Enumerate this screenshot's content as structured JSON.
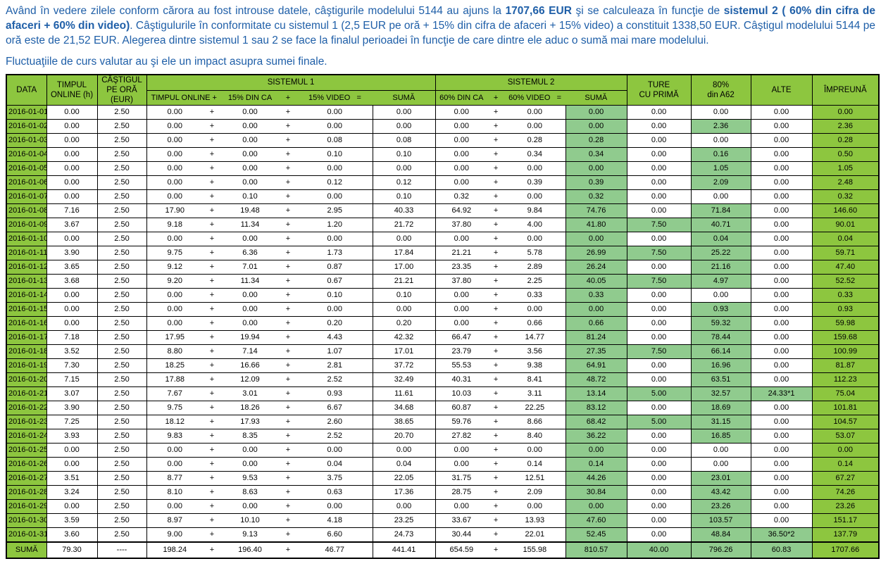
{
  "intro": {
    "paragraph_parts": [
      {
        "text": "Având în vedere zilele conform cărora au fost introuse datele, câştigurile modelului 5144 au ajuns la ",
        "bold": false
      },
      {
        "text": "1707,66 EUR",
        "bold": true
      },
      {
        "text": " şi se calculeaza în funcţie de ",
        "bold": false
      },
      {
        "text": "sistemul 2 ( 60% din cifra de afaceri + 60% din video)",
        "bold": true
      },
      {
        "text": ". Câştigulurile în conformitate cu sistemul 1 (2,5 EUR pe oră + 15% din cifra de afaceri + 15% video) a constituit 1338,50 EUR. Câştigul modelului 5144 pe oră este de 21,52 EUR. Alegerea dintre sistemul 1 sau 2 se face la finalul perioadei în funcţie de care dintre ele aduc o sumă mai mare modelului.",
        "bold": false
      }
    ],
    "paragraph2": "Fluctuaţiile de curs valutar au şi ele un impact asupra sumei finale."
  },
  "colors": {
    "text_blue": "#1f5fa8",
    "green_bright": "#8dc63f",
    "green_mid": "#90cb8e"
  },
  "table": {
    "plus_sign": "+",
    "headers": {
      "data": "DATA",
      "timpul_online": "TIMPUL\nONLINE (h)",
      "castigul": "CÂŞTIGUL\nPE ORĂ (EUR)",
      "sistemul1": "SISTEMUL 1",
      "sistemul2": "SISTEMUL 2",
      "s1_sub": [
        "TIMPUL ONLINE +",
        "15% DIN CA",
        "+",
        "15% VIDEO   =",
        "SUMĂ"
      ],
      "s2_sub": [
        "60% DIN CA",
        "+",
        "60% VIDEO   =",
        "SUMĂ"
      ],
      "ture": "TURE\nCU PRIMĂ",
      "a62": "80%\ndin A62",
      "alte": "ALTE",
      "impreuna": "ÎMPREUNĂ"
    },
    "rows": [
      {
        "data": "2016-01-01",
        "online": "0.00",
        "rate": "2.50",
        "s1": [
          "0.00",
          "0.00",
          "0.00"
        ],
        "s1sum": "0.00",
        "s2": [
          "0.00",
          "0.00"
        ],
        "s2sum": "0.00",
        "ture": "0.00",
        "a62": "0.00",
        "alte": "0.00",
        "total": "0.00"
      },
      {
        "data": "2016-01-02",
        "online": "0.00",
        "rate": "2.50",
        "s1": [
          "0.00",
          "0.00",
          "0.00"
        ],
        "s1sum": "0.00",
        "s2": [
          "0.00",
          "0.00"
        ],
        "s2sum": "0.00",
        "ture": "0.00",
        "a62": "2.36",
        "alte": "0.00",
        "total": "2.36"
      },
      {
        "data": "2016-01-03",
        "online": "0.00",
        "rate": "2.50",
        "s1": [
          "0.00",
          "0.00",
          "0.08"
        ],
        "s1sum": "0.08",
        "s2": [
          "0.00",
          "0.28"
        ],
        "s2sum": "0.28",
        "ture": "0.00",
        "a62": "0.00",
        "alte": "0.00",
        "total": "0.28"
      },
      {
        "data": "2016-01-04",
        "online": "0.00",
        "rate": "2.50",
        "s1": [
          "0.00",
          "0.00",
          "0.10"
        ],
        "s1sum": "0.10",
        "s2": [
          "0.00",
          "0.34"
        ],
        "s2sum": "0.34",
        "ture": "0.00",
        "a62": "0.16",
        "alte": "0.00",
        "total": "0.50"
      },
      {
        "data": "2016-01-05",
        "online": "0.00",
        "rate": "2.50",
        "s1": [
          "0.00",
          "0.00",
          "0.00"
        ],
        "s1sum": "0.00",
        "s2": [
          "0.00",
          "0.00"
        ],
        "s2sum": "0.00",
        "ture": "0.00",
        "a62": "1.05",
        "alte": "0.00",
        "total": "1.05"
      },
      {
        "data": "2016-01-06",
        "online": "0.00",
        "rate": "2.50",
        "s1": [
          "0.00",
          "0.00",
          "0.12"
        ],
        "s1sum": "0.12",
        "s2": [
          "0.00",
          "0.39"
        ],
        "s2sum": "0.39",
        "ture": "0.00",
        "a62": "2.09",
        "alte": "0.00",
        "total": "2.48"
      },
      {
        "data": "2016-01-07",
        "online": "0.00",
        "rate": "2.50",
        "s1": [
          "0.00",
          "0.10",
          "0.00"
        ],
        "s1sum": "0.10",
        "s2": [
          "0.32",
          "0.00"
        ],
        "s2sum": "0.32",
        "ture": "0.00",
        "a62": "0.00",
        "alte": "0.00",
        "total": "0.32"
      },
      {
        "data": "2016-01-08",
        "online": "7.16",
        "rate": "2.50",
        "s1": [
          "17.90",
          "19.48",
          "2.95"
        ],
        "s1sum": "40.33",
        "s2": [
          "64.92",
          "9.84"
        ],
        "s2sum": "74.76",
        "ture": "0.00",
        "a62": "71.84",
        "alte": "0.00",
        "total": "146.60"
      },
      {
        "data": "2016-01-09",
        "online": "3.67",
        "rate": "2.50",
        "s1": [
          "9.18",
          "11.34",
          "1.20"
        ],
        "s1sum": "21.72",
        "s2": [
          "37.80",
          "4.00"
        ],
        "s2sum": "41.80",
        "ture": "7.50",
        "a62": "40.71",
        "alte": "0.00",
        "total": "90.01"
      },
      {
        "data": "2016-01-10",
        "online": "0.00",
        "rate": "2.50",
        "s1": [
          "0.00",
          "0.00",
          "0.00"
        ],
        "s1sum": "0.00",
        "s2": [
          "0.00",
          "0.00"
        ],
        "s2sum": "0.00",
        "ture": "0.00",
        "a62": "0.04",
        "alte": "0.00",
        "total": "0.04"
      },
      {
        "data": "2016-01-11",
        "online": "3.90",
        "rate": "2.50",
        "s1": [
          "9.75",
          "6.36",
          "1.73"
        ],
        "s1sum": "17.84",
        "s2": [
          "21.21",
          "5.78"
        ],
        "s2sum": "26.99",
        "ture": "7.50",
        "a62": "25.22",
        "alte": "0.00",
        "total": "59.71"
      },
      {
        "data": "2016-01-12",
        "online": "3.65",
        "rate": "2.50",
        "s1": [
          "9.12",
          "7.01",
          "0.87"
        ],
        "s1sum": "17.00",
        "s2": [
          "23.35",
          "2.89"
        ],
        "s2sum": "26.24",
        "ture": "0.00",
        "a62": "21.16",
        "alte": "0.00",
        "total": "47.40"
      },
      {
        "data": "2016-01-13",
        "online": "3.68",
        "rate": "2.50",
        "s1": [
          "9.20",
          "11.34",
          "0.67"
        ],
        "s1sum": "21.21",
        "s2": [
          "37.80",
          "2.25"
        ],
        "s2sum": "40.05",
        "ture": "7.50",
        "a62": "4.97",
        "alte": "0.00",
        "total": "52.52"
      },
      {
        "data": "2016-01-14",
        "online": "0.00",
        "rate": "2.50",
        "s1": [
          "0.00",
          "0.00",
          "0.10"
        ],
        "s1sum": "0.10",
        "s2": [
          "0.00",
          "0.33"
        ],
        "s2sum": "0.33",
        "ture": "0.00",
        "a62": "0.00",
        "alte": "0.00",
        "total": "0.33"
      },
      {
        "data": "2016-01-15",
        "online": "0.00",
        "rate": "2.50",
        "s1": [
          "0.00",
          "0.00",
          "0.00"
        ],
        "s1sum": "0.00",
        "s2": [
          "0.00",
          "0.00"
        ],
        "s2sum": "0.00",
        "ture": "0.00",
        "a62": "0.93",
        "alte": "0.00",
        "total": "0.93"
      },
      {
        "data": "2016-01-16",
        "online": "0.00",
        "rate": "2.50",
        "s1": [
          "0.00",
          "0.00",
          "0.20"
        ],
        "s1sum": "0.20",
        "s2": [
          "0.00",
          "0.66"
        ],
        "s2sum": "0.66",
        "ture": "0.00",
        "a62": "59.32",
        "alte": "0.00",
        "total": "59.98"
      },
      {
        "data": "2016-01-17",
        "online": "7.18",
        "rate": "2.50",
        "s1": [
          "17.95",
          "19.94",
          "4.43"
        ],
        "s1sum": "42.32",
        "s2": [
          "66.47",
          "14.77"
        ],
        "s2sum": "81.24",
        "ture": "0.00",
        "a62": "78.44",
        "alte": "0.00",
        "total": "159.68"
      },
      {
        "data": "2016-01-18",
        "online": "3.52",
        "rate": "2.50",
        "s1": [
          "8.80",
          "7.14",
          "1.07"
        ],
        "s1sum": "17.01",
        "s2": [
          "23.79",
          "3.56"
        ],
        "s2sum": "27.35",
        "ture": "7.50",
        "a62": "66.14",
        "alte": "0.00",
        "total": "100.99"
      },
      {
        "data": "2016-01-19",
        "online": "7.30",
        "rate": "2.50",
        "s1": [
          "18.25",
          "16.66",
          "2.81"
        ],
        "s1sum": "37.72",
        "s2": [
          "55.53",
          "9.38"
        ],
        "s2sum": "64.91",
        "ture": "0.00",
        "a62": "16.96",
        "alte": "0.00",
        "total": "81.87"
      },
      {
        "data": "2016-01-20",
        "online": "7.15",
        "rate": "2.50",
        "s1": [
          "17.88",
          "12.09",
          "2.52"
        ],
        "s1sum": "32.49",
        "s2": [
          "40.31",
          "8.41"
        ],
        "s2sum": "48.72",
        "ture": "0.00",
        "a62": "63.51",
        "alte": "0.00",
        "total": "112.23"
      },
      {
        "data": "2016-01-21",
        "online": "3.07",
        "rate": "2.50",
        "s1": [
          "7.67",
          "3.01",
          "0.93"
        ],
        "s1sum": "11.61",
        "s2": [
          "10.03",
          "3.11"
        ],
        "s2sum": "13.14",
        "ture": "5.00",
        "a62": "32.57",
        "alte": "24.33*1",
        "total": "75.04"
      },
      {
        "data": "2016-01-22",
        "online": "3.90",
        "rate": "2.50",
        "s1": [
          "9.75",
          "18.26",
          "6.67"
        ],
        "s1sum": "34.68",
        "s2": [
          "60.87",
          "22.25"
        ],
        "s2sum": "83.12",
        "ture": "0.00",
        "a62": "18.69",
        "alte": "0.00",
        "total": "101.81"
      },
      {
        "data": "2016-01-23",
        "online": "7.25",
        "rate": "2.50",
        "s1": [
          "18.12",
          "17.93",
          "2.60"
        ],
        "s1sum": "38.65",
        "s2": [
          "59.76",
          "8.66"
        ],
        "s2sum": "68.42",
        "ture": "5.00",
        "a62": "31.15",
        "alte": "0.00",
        "total": "104.57"
      },
      {
        "data": "2016-01-24",
        "online": "3.93",
        "rate": "2.50",
        "s1": [
          "9.83",
          "8.35",
          "2.52"
        ],
        "s1sum": "20.70",
        "s2": [
          "27.82",
          "8.40"
        ],
        "s2sum": "36.22",
        "ture": "0.00",
        "a62": "16.85",
        "alte": "0.00",
        "total": "53.07"
      },
      {
        "data": "2016-01-25",
        "online": "0.00",
        "rate": "2.50",
        "s1": [
          "0.00",
          "0.00",
          "0.00"
        ],
        "s1sum": "0.00",
        "s2": [
          "0.00",
          "0.00"
        ],
        "s2sum": "0.00",
        "ture": "0.00",
        "a62": "0.00",
        "alte": "0.00",
        "total": "0.00"
      },
      {
        "data": "2016-01-26",
        "online": "0.00",
        "rate": "2.50",
        "s1": [
          "0.00",
          "0.00",
          "0.04"
        ],
        "s1sum": "0.04",
        "s2": [
          "0.00",
          "0.14"
        ],
        "s2sum": "0.14",
        "ture": "0.00",
        "a62": "0.00",
        "alte": "0.00",
        "total": "0.14"
      },
      {
        "data": "2016-01-27",
        "online": "3.51",
        "rate": "2.50",
        "s1": [
          "8.77",
          "9.53",
          "3.75"
        ],
        "s1sum": "22.05",
        "s2": [
          "31.75",
          "12.51"
        ],
        "s2sum": "44.26",
        "ture": "0.00",
        "a62": "23.01",
        "alte": "0.00",
        "total": "67.27"
      },
      {
        "data": "2016-01-28",
        "online": "3.24",
        "rate": "2.50",
        "s1": [
          "8.10",
          "8.63",
          "0.63"
        ],
        "s1sum": "17.36",
        "s2": [
          "28.75",
          "2.09"
        ],
        "s2sum": "30.84",
        "ture": "0.00",
        "a62": "43.42",
        "alte": "0.00",
        "total": "74.26"
      },
      {
        "data": "2016-01-29",
        "online": "0.00",
        "rate": "2.50",
        "s1": [
          "0.00",
          "0.00",
          "0.00"
        ],
        "s1sum": "0.00",
        "s2": [
          "0.00",
          "0.00"
        ],
        "s2sum": "0.00",
        "ture": "0.00",
        "a62": "23.26",
        "alte": "0.00",
        "total": "23.26"
      },
      {
        "data": "2016-01-30",
        "online": "3.59",
        "rate": "2.50",
        "s1": [
          "8.97",
          "10.10",
          "4.18"
        ],
        "s1sum": "23.25",
        "s2": [
          "33.67",
          "13.93"
        ],
        "s2sum": "47.60",
        "ture": "0.00",
        "a62": "103.57",
        "alte": "0.00",
        "total": "151.17"
      },
      {
        "data": "2016-01-31",
        "online": "3.60",
        "rate": "2.50",
        "s1": [
          "9.00",
          "9.13",
          "6.60"
        ],
        "s1sum": "24.73",
        "s2": [
          "30.44",
          "22.01"
        ],
        "s2sum": "52.45",
        "ture": "0.00",
        "a62": "48.84",
        "alte": "36.50*2",
        "total": "137.79"
      }
    ],
    "sum_row": {
      "data": "SUMĂ",
      "online": "79.30",
      "rate": "----",
      "s1": [
        "198.24",
        "196.40",
        "46.77"
      ],
      "s1sum": "441.41",
      "s2": [
        "654.59",
        "155.98"
      ],
      "s2sum": "810.57",
      "ture": "40.00",
      "a62": "796.26",
      "alte": "60.83",
      "total": "1707.66"
    }
  }
}
